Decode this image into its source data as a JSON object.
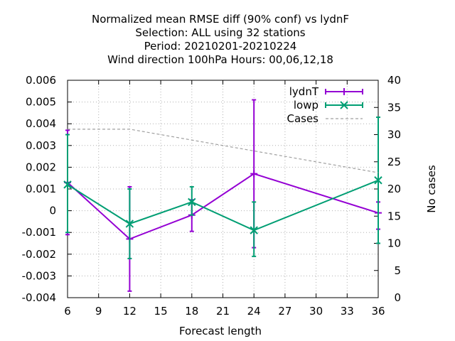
{
  "chart_data": {
    "type": "line",
    "title_lines": [
      "Normalized mean RMSE diff (90% conf) vs lydnF",
      "Selection: ALL using    32 stations",
      "Period: 20210201-20210224",
      "Wind direction 100hPa   Hours:  00,06,12,18"
    ],
    "xlabel": "Forecast length",
    "ylabel": "",
    "y2label": "No cases",
    "xlim": [
      6,
      36
    ],
    "ylim": [
      -0.004,
      0.006
    ],
    "y2lim": [
      0,
      40
    ],
    "x_ticks": [
      "6",
      "9",
      "12",
      "15",
      "18",
      "21",
      "24",
      "27",
      "30",
      "33",
      "36"
    ],
    "y_ticks": [
      "-0.004",
      "-0.003",
      "-0.002",
      "-0.001",
      "0",
      "0.001",
      "0.002",
      "0.003",
      "0.004",
      "0.005",
      "0.006"
    ],
    "y2_ticks": [
      "0",
      "5",
      "10",
      "15",
      "20",
      "25",
      "30",
      "35",
      "40"
    ],
    "grid": true,
    "legend_position": "top-right",
    "series": [
      {
        "name": "lydnT",
        "color": "#9400d3",
        "marker": "plus",
        "axis": "y",
        "x": [
          6,
          12,
          18,
          24,
          36
        ],
        "y": [
          0.0013,
          -0.0013,
          -0.0002,
          0.0017,
          -0.0001
        ],
        "err_low": [
          -0.0011,
          -0.0037,
          -0.00095,
          -0.0017,
          -0.00085
        ],
        "err_high": [
          0.0037,
          0.0011,
          0.0005,
          0.0051,
          0.0004
        ]
      },
      {
        "name": "lowp",
        "color": "#009e73",
        "marker": "cross",
        "axis": "y",
        "x": [
          6,
          12,
          18,
          24,
          36
        ],
        "y": [
          0.0012,
          -0.0006,
          0.0004,
          -0.0009,
          0.0014
        ],
        "err_low": [
          -0.001,
          -0.0022,
          -0.0002,
          -0.0021,
          -0.0015
        ],
        "err_high": [
          0.0035,
          0.001,
          0.0011,
          0.0004,
          0.0043
        ]
      },
      {
        "name": "Cases",
        "color": "#a0a0a0",
        "marker": "none",
        "dashed": true,
        "axis": "y2",
        "x": [
          6,
          12,
          18,
          24,
          30,
          36
        ],
        "y": [
          31,
          31,
          29,
          27,
          25,
          23
        ]
      }
    ]
  }
}
